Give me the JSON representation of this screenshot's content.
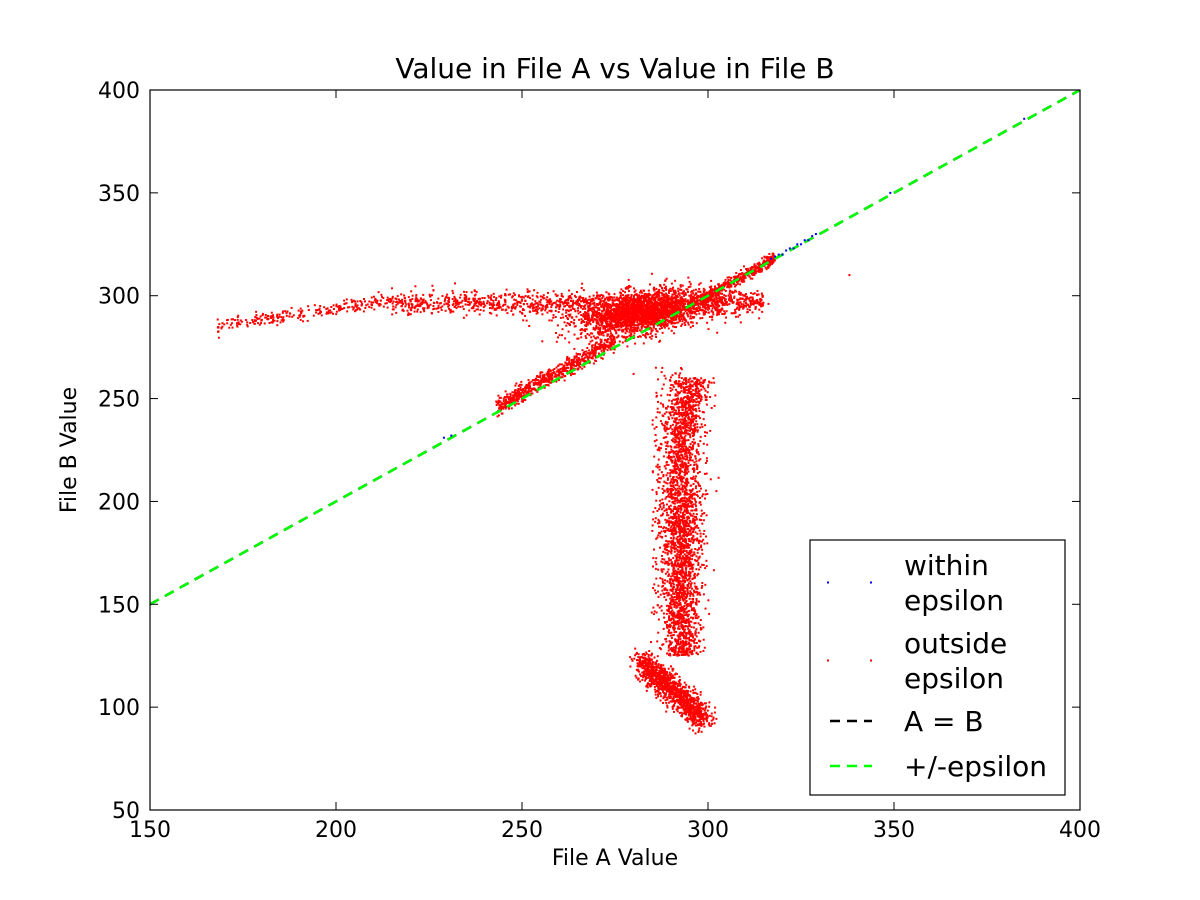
{
  "chart_data": {
    "type": "scatter",
    "title": "Value in File A vs Value in File B",
    "xlabel": "File A Value",
    "ylabel": "File B Value",
    "xlim": [
      150,
      400
    ],
    "ylim": [
      50,
      400
    ],
    "xticks": [
      150,
      200,
      250,
      300,
      350,
      400
    ],
    "yticks": [
      50,
      100,
      150,
      200,
      250,
      300,
      350,
      400
    ],
    "grid": false,
    "legend_position": "lower-right",
    "series": [
      {
        "name": "within\nepsilon",
        "kind": "points",
        "color": "#0000ff",
        "points": [
          [
            229,
            231
          ],
          [
            231,
            232
          ],
          [
            317,
            318
          ],
          [
            318,
            319
          ],
          [
            319,
            320
          ],
          [
            320,
            320
          ],
          [
            321,
            322
          ],
          [
            322,
            323
          ],
          [
            323,
            323
          ],
          [
            324,
            325
          ],
          [
            325,
            325
          ],
          [
            326,
            327
          ],
          [
            327,
            327
          ],
          [
            328,
            329
          ],
          [
            329,
            330
          ],
          [
            349,
            350
          ],
          [
            385,
            386
          ]
        ]
      },
      {
        "name": "outside\nepsilon",
        "kind": "points",
        "color": "#ff0000",
        "clusters": [
          {
            "region": "left horizontal branch",
            "x": [
              168,
              215
            ],
            "y": [
              283,
              302
            ]
          },
          {
            "region": "mid horizontal branch",
            "x": [
              215,
              275
            ],
            "y": [
              285,
              305
            ]
          },
          {
            "region": "dense core",
            "x": [
              270,
              305
            ],
            "y": [
              280,
              305
            ]
          },
          {
            "region": "lower diagonal",
            "x": [
              243,
              275
            ],
            "y": [
              243,
              270
            ]
          },
          {
            "region": "upper diagonal",
            "x": [
              300,
              318
            ],
            "y": [
              300,
              318
            ]
          },
          {
            "region": "vertical branch",
            "x": [
              283,
              300
            ],
            "y": [
              90,
              265
            ]
          },
          {
            "region": "lower blob",
            "x": [
              282,
              300
            ],
            "y": [
              90,
              125
            ]
          }
        ]
      },
      {
        "name": "A = B",
        "kind": "line",
        "style": "dashed",
        "color": "#000000",
        "x": [
          150,
          400
        ],
        "y": [
          150,
          400
        ]
      },
      {
        "name": "+/-epsilon",
        "kind": "line",
        "style": "dashed",
        "color": "#00ff00",
        "x": [
          150,
          400
        ],
        "y": [
          150,
          400
        ]
      }
    ]
  }
}
